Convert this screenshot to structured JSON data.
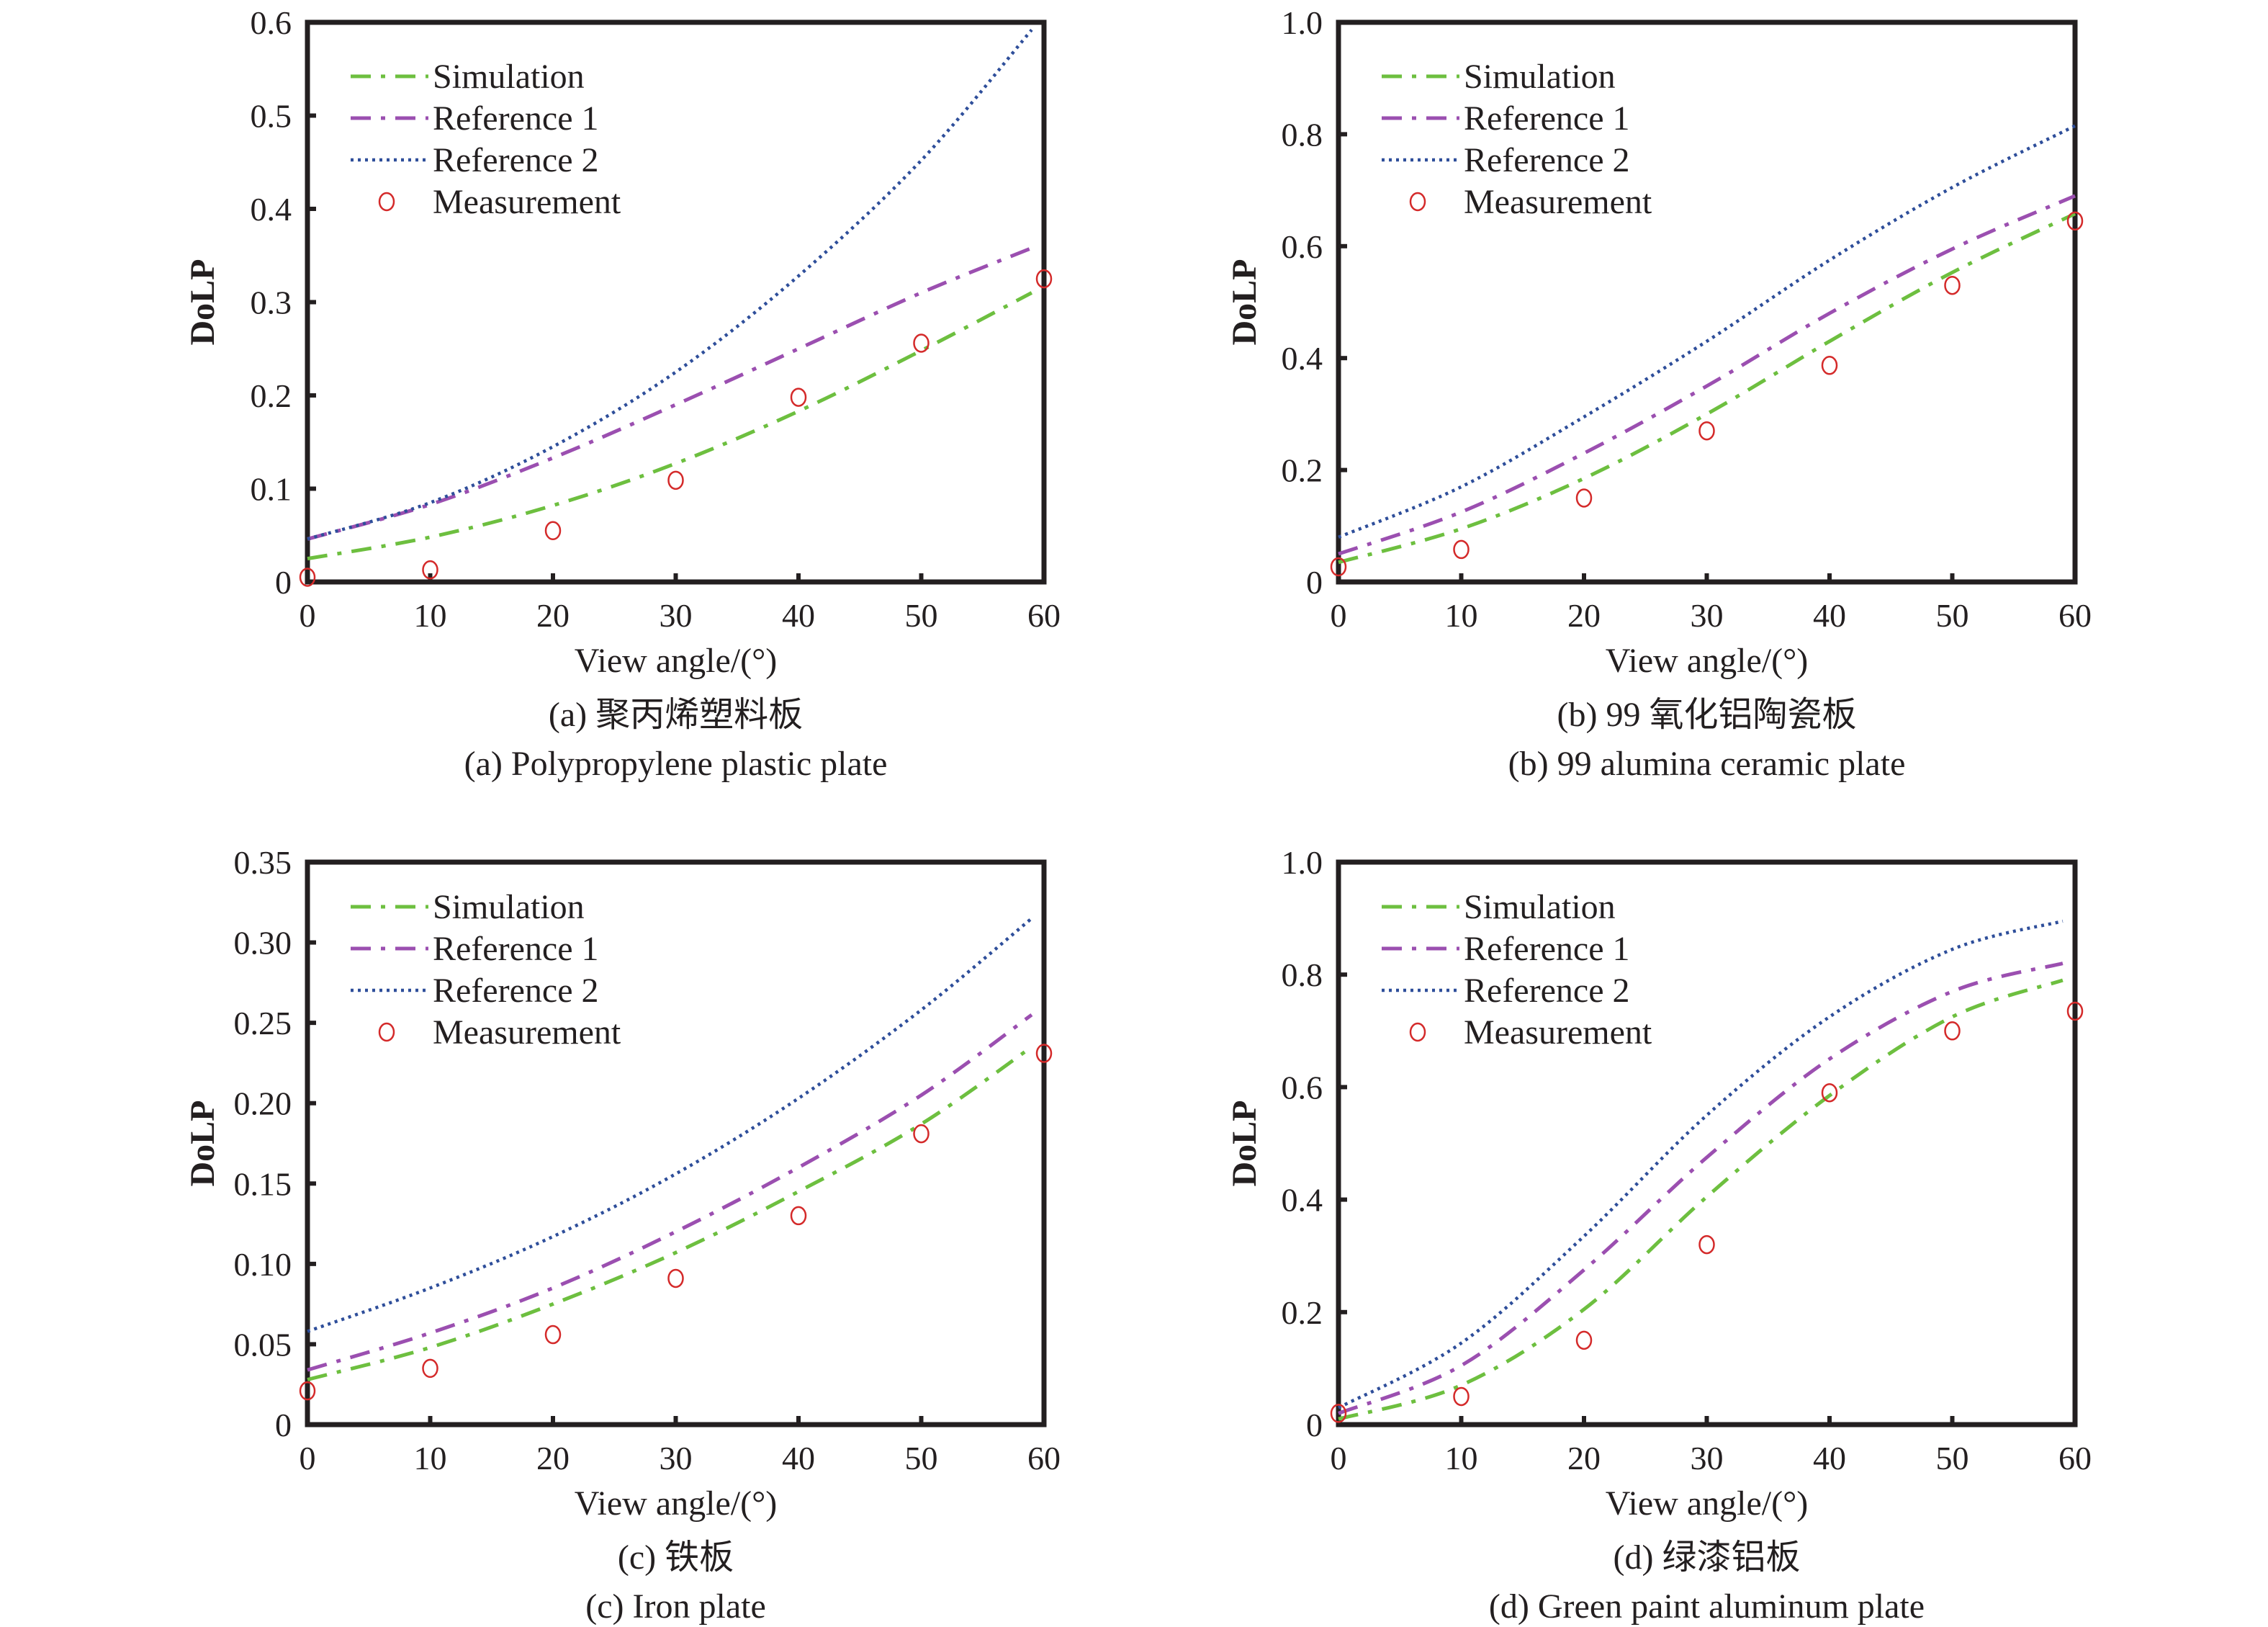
{
  "chart_data": [
    {
      "type": "line",
      "panel": "a",
      "title": "",
      "caption_cn": "(a) 聚丙烯塑料板",
      "caption_en": "(a) Polypropylene plastic plate",
      "xlabel": "View angle/(°)",
      "ylabel": "DoLP",
      "xlim": [
        0,
        60
      ],
      "ylim": [
        0,
        0.6
      ],
      "xticks": [
        0,
        10,
        20,
        30,
        40,
        50,
        60
      ],
      "xtick_labels": [
        "0",
        "10",
        "20",
        "30",
        "40",
        "50",
        "60"
      ],
      "yticks": [
        0,
        0.1,
        0.2,
        0.3,
        0.4,
        0.5,
        0.6
      ],
      "ytick_labels": [
        "0",
        "0.1",
        "0.2",
        "0.3",
        "0.4",
        "0.5",
        "0.6"
      ],
      "grid": false,
      "legend_position": "top-left",
      "series": [
        {
          "name": "Simulation",
          "style": "dash-dot",
          "color": "#6dbf3f",
          "x": [
            0,
            10,
            20,
            30,
            40,
            50,
            59
          ],
          "values": [
            0.025,
            0.048,
            0.082,
            0.127,
            0.183,
            0.248,
            0.31
          ]
        },
        {
          "name": "Reference 1",
          "style": "dash-dot",
          "color": "#9b4fb0",
          "x": [
            0,
            10,
            20,
            30,
            40,
            50,
            59
          ],
          "values": [
            0.046,
            0.083,
            0.133,
            0.19,
            0.25,
            0.31,
            0.358
          ]
        },
        {
          "name": "Reference 2",
          "style": "dotted",
          "color": "#2e4e9a",
          "x": [
            0,
            10,
            20,
            30,
            40,
            50,
            59
          ],
          "values": [
            0.046,
            0.085,
            0.145,
            0.225,
            0.328,
            0.452,
            0.592
          ]
        },
        {
          "name": "Measurement",
          "style": "markers",
          "color": "#d42a2a",
          "x": [
            0,
            10,
            20,
            30,
            40,
            50,
            60
          ],
          "values": [
            0.005,
            0.013,
            0.055,
            0.109,
            0.198,
            0.256,
            0.325
          ]
        }
      ]
    },
    {
      "type": "line",
      "panel": "b",
      "title": "",
      "caption_cn": "(b) 99 氧化铝陶瓷板",
      "caption_en": "(b) 99 alumina ceramic plate",
      "xlabel": "View angle/(°)",
      "ylabel": "DoLP",
      "xlim": [
        0,
        60
      ],
      "ylim": [
        0,
        1.0
      ],
      "xticks": [
        0,
        10,
        20,
        30,
        40,
        50,
        60
      ],
      "xtick_labels": [
        "0",
        "10",
        "20",
        "30",
        "40",
        "50",
        "60"
      ],
      "yticks": [
        0,
        0.2,
        0.4,
        0.6,
        0.8,
        1.0
      ],
      "ytick_labels": [
        "0",
        "0.2",
        "0.4",
        "0.6",
        "0.8",
        "1.0"
      ],
      "grid": false,
      "legend_position": "top-left",
      "series": [
        {
          "name": "Simulation",
          "style": "dash-dot",
          "color": "#6dbf3f",
          "x": [
            0,
            10,
            20,
            30,
            40,
            50,
            60
          ],
          "values": [
            0.035,
            0.095,
            0.185,
            0.3,
            0.43,
            0.553,
            0.658
          ]
        },
        {
          "name": "Reference 1",
          "style": "dash-dot",
          "color": "#9b4fb0",
          "x": [
            0,
            10,
            20,
            30,
            40,
            50,
            60
          ],
          "values": [
            0.05,
            0.125,
            0.23,
            0.35,
            0.48,
            0.595,
            0.69
          ]
        },
        {
          "name": "Reference 2",
          "style": "dotted",
          "color": "#2e4e9a",
          "x": [
            0,
            10,
            20,
            30,
            40,
            50,
            60
          ],
          "values": [
            0.08,
            0.17,
            0.295,
            0.43,
            0.575,
            0.705,
            0.815
          ]
        },
        {
          "name": "Measurement",
          "style": "markers",
          "color": "#d42a2a",
          "x": [
            0,
            10,
            20,
            30,
            40,
            50,
            60
          ],
          "values": [
            0.027,
            0.058,
            0.15,
            0.27,
            0.387,
            0.53,
            0.645
          ]
        }
      ]
    },
    {
      "type": "line",
      "panel": "c",
      "title": "",
      "caption_cn": "(c) 铁板",
      "caption_en": "(c) Iron plate",
      "xlabel": "View angle/(°)",
      "ylabel": "DoLP",
      "xlim": [
        0,
        60
      ],
      "ylim": [
        0,
        0.35
      ],
      "xticks": [
        0,
        10,
        20,
        30,
        40,
        50,
        60
      ],
      "xtick_labels": [
        "0",
        "10",
        "20",
        "30",
        "40",
        "50",
        "60"
      ],
      "yticks": [
        0,
        0.05,
        0.1,
        0.15,
        0.2,
        0.25,
        0.3,
        0.35
      ],
      "ytick_labels": [
        "0",
        "0.05",
        "0.10",
        "0.15",
        "0.20",
        "0.25",
        "0.30",
        "0.35"
      ],
      "grid": false,
      "legend_position": "top-left",
      "series": [
        {
          "name": "Simulation",
          "style": "dash-dot",
          "color": "#6dbf3f",
          "x": [
            0,
            10,
            20,
            30,
            40,
            50,
            59
          ],
          "values": [
            0.028,
            0.048,
            0.075,
            0.107,
            0.145,
            0.187,
            0.235
          ]
        },
        {
          "name": "Reference 1",
          "style": "dash-dot",
          "color": "#9b4fb0",
          "x": [
            0,
            10,
            20,
            30,
            40,
            50,
            59
          ],
          "values": [
            0.034,
            0.057,
            0.085,
            0.12,
            0.16,
            0.205,
            0.255
          ]
        },
        {
          "name": "Reference 2",
          "style": "dotted",
          "color": "#2e4e9a",
          "x": [
            0,
            10,
            20,
            30,
            40,
            50,
            59
          ],
          "values": [
            0.058,
            0.085,
            0.117,
            0.156,
            0.203,
            0.258,
            0.315
          ]
        },
        {
          "name": "Measurement",
          "style": "markers",
          "color": "#d42a2a",
          "x": [
            0,
            10,
            20,
            30,
            40,
            50,
            60
          ],
          "values": [
            0.021,
            0.035,
            0.056,
            0.091,
            0.13,
            0.181,
            0.231
          ]
        }
      ]
    },
    {
      "type": "line",
      "panel": "d",
      "title": "",
      "caption_cn": "(d) 绿漆铝板",
      "caption_en": "(d) Green paint aluminum plate",
      "xlabel": "View angle/(°)",
      "ylabel": "DoLP",
      "xlim": [
        0,
        60
      ],
      "ylim": [
        0,
        1.0
      ],
      "xticks": [
        0,
        10,
        20,
        30,
        40,
        50,
        60
      ],
      "xtick_labels": [
        "0",
        "10",
        "20",
        "30",
        "40",
        "50",
        "60"
      ],
      "yticks": [
        0,
        0.2,
        0.4,
        0.6,
        0.8,
        1.0
      ],
      "ytick_labels": [
        "0",
        "0.2",
        "0.4",
        "0.6",
        "0.8",
        "1.0"
      ],
      "grid": false,
      "legend_position": "top-left",
      "series": [
        {
          "name": "Simulation",
          "style": "dash-dot",
          "color": "#6dbf3f",
          "x": [
            0,
            10,
            20,
            30,
            40,
            50,
            59
          ],
          "values": [
            0.01,
            0.07,
            0.205,
            0.405,
            0.585,
            0.725,
            0.79
          ]
        },
        {
          "name": "Reference 1",
          "style": "dash-dot",
          "color": "#9b4fb0",
          "x": [
            0,
            10,
            20,
            30,
            40,
            50,
            59
          ],
          "values": [
            0.02,
            0.105,
            0.275,
            0.475,
            0.65,
            0.77,
            0.82
          ]
        },
        {
          "name": "Reference 2",
          "style": "dotted",
          "color": "#2e4e9a",
          "x": [
            0,
            10,
            20,
            30,
            40,
            50,
            59
          ],
          "values": [
            0.03,
            0.145,
            0.335,
            0.55,
            0.725,
            0.845,
            0.895
          ]
        },
        {
          "name": "Measurement",
          "style": "markers",
          "color": "#d42a2a",
          "x": [
            0,
            10,
            20,
            30,
            40,
            50,
            60
          ],
          "values": [
            0.02,
            0.05,
            0.15,
            0.32,
            0.59,
            0.7,
            0.735
          ]
        }
      ]
    }
  ]
}
